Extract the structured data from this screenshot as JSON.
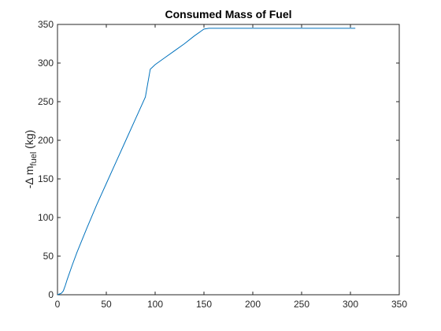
{
  "chart_data": {
    "type": "line",
    "title": "Consumed Mass of Fuel",
    "xlabel": "",
    "ylabel": {
      "prefix": "-Δ m",
      "subscript": "fuel",
      "suffix": " (kg)"
    },
    "xlim": [
      0,
      350
    ],
    "ylim": [
      0,
      350
    ],
    "xticks": [
      0,
      50,
      100,
      150,
      200,
      250,
      300,
      350
    ],
    "yticks": [
      0,
      50,
      100,
      150,
      200,
      250,
      300,
      350
    ],
    "grid": false,
    "line_color": "#0072BD",
    "series": [
      {
        "x": [
          0,
          2,
          4,
          6,
          8,
          10,
          15,
          20,
          30,
          40,
          50,
          60,
          70,
          80,
          90,
          95,
          100,
          110,
          120,
          130,
          140,
          150,
          155,
          200,
          250,
          300,
          305
        ],
        "y": [
          0,
          1,
          2,
          5,
          12,
          20,
          38,
          55,
          86,
          116,
          144,
          172,
          200,
          228,
          256,
          292,
          298,
          307,
          316,
          325,
          335,
          344,
          345,
          345,
          345,
          345,
          345
        ]
      }
    ]
  }
}
